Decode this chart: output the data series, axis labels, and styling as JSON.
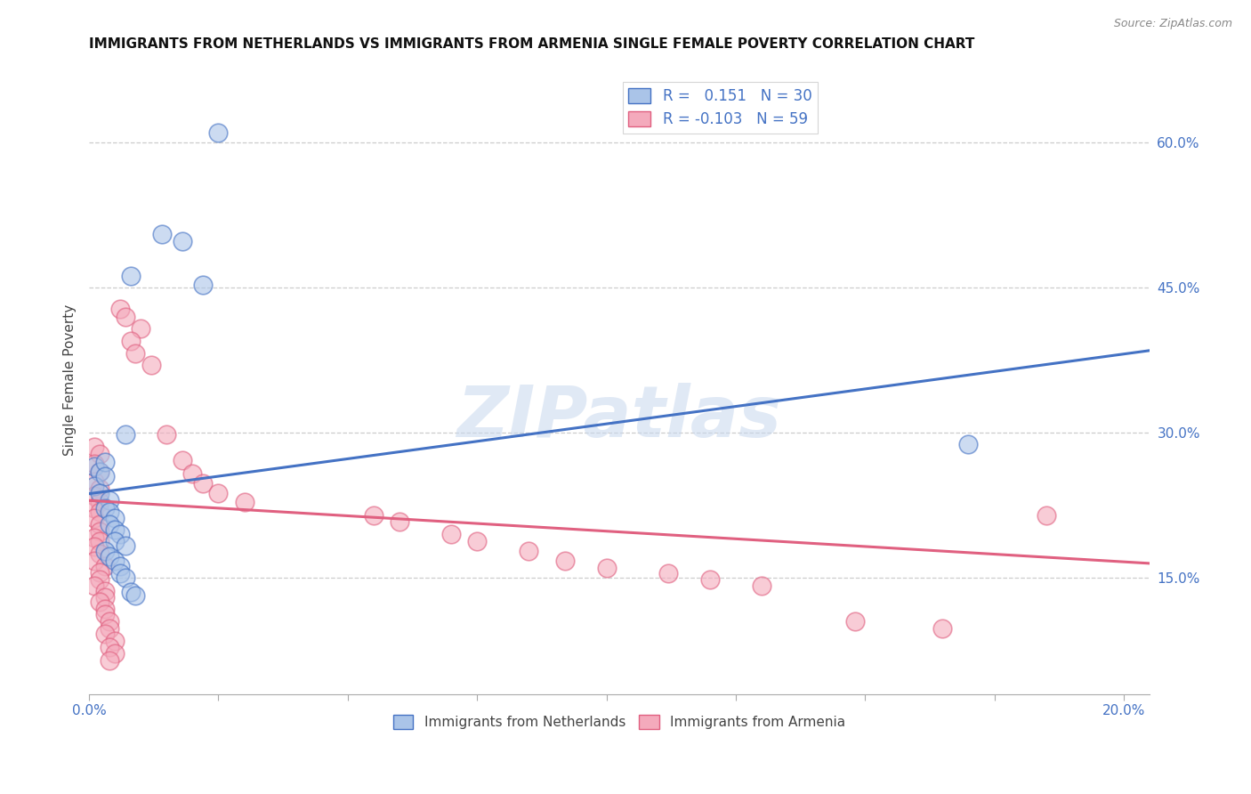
{
  "title": "IMMIGRANTS FROM NETHERLANDS VS IMMIGRANTS FROM ARMENIA SINGLE FEMALE POVERTY CORRELATION CHART",
  "source": "Source: ZipAtlas.com",
  "ylabel": "Single Female Poverty",
  "legend1_label": "Immigrants from Netherlands",
  "legend2_label": "Immigrants from Armenia",
  "R1": 0.151,
  "N1": 30,
  "R2": -0.103,
  "N2": 59,
  "color_blue": "#aac4e8",
  "color_pink": "#f4aabc",
  "trend_blue": "#4472c4",
  "trend_pink": "#e06080",
  "watermark": "ZIPatlas",
  "scatter_blue": [
    [
      0.025,
      0.61
    ],
    [
      0.014,
      0.505
    ],
    [
      0.018,
      0.498
    ],
    [
      0.008,
      0.462
    ],
    [
      0.022,
      0.453
    ],
    [
      0.001,
      0.265
    ],
    [
      0.002,
      0.26
    ],
    [
      0.001,
      0.245
    ],
    [
      0.003,
      0.27
    ],
    [
      0.003,
      0.255
    ],
    [
      0.002,
      0.238
    ],
    [
      0.004,
      0.23
    ],
    [
      0.003,
      0.222
    ],
    [
      0.004,
      0.218
    ],
    [
      0.005,
      0.212
    ],
    [
      0.004,
      0.205
    ],
    [
      0.005,
      0.2
    ],
    [
      0.006,
      0.195
    ],
    [
      0.005,
      0.188
    ],
    [
      0.007,
      0.183
    ],
    [
      0.007,
      0.298
    ],
    [
      0.003,
      0.178
    ],
    [
      0.004,
      0.172
    ],
    [
      0.005,
      0.168
    ],
    [
      0.006,
      0.162
    ],
    [
      0.006,
      0.155
    ],
    [
      0.007,
      0.15
    ],
    [
      0.008,
      0.135
    ],
    [
      0.009,
      0.132
    ],
    [
      0.17,
      0.288
    ]
  ],
  "scatter_pink": [
    [
      0.001,
      0.285
    ],
    [
      0.002,
      0.278
    ],
    [
      0.001,
      0.268
    ],
    [
      0.002,
      0.26
    ],
    [
      0.001,
      0.25
    ],
    [
      0.002,
      0.242
    ],
    [
      0.001,
      0.235
    ],
    [
      0.002,
      0.228
    ],
    [
      0.001,
      0.222
    ],
    [
      0.002,
      0.218
    ],
    [
      0.001,
      0.212
    ],
    [
      0.002,
      0.205
    ],
    [
      0.002,
      0.198
    ],
    [
      0.001,
      0.192
    ],
    [
      0.002,
      0.188
    ],
    [
      0.001,
      0.182
    ],
    [
      0.002,
      0.175
    ],
    [
      0.001,
      0.168
    ],
    [
      0.003,
      0.162
    ],
    [
      0.002,
      0.156
    ],
    [
      0.002,
      0.148
    ],
    [
      0.001,
      0.142
    ],
    [
      0.003,
      0.136
    ],
    [
      0.003,
      0.13
    ],
    [
      0.002,
      0.125
    ],
    [
      0.003,
      0.118
    ],
    [
      0.003,
      0.112
    ],
    [
      0.004,
      0.105
    ],
    [
      0.004,
      0.098
    ],
    [
      0.003,
      0.092
    ],
    [
      0.005,
      0.085
    ],
    [
      0.004,
      0.078
    ],
    [
      0.005,
      0.072
    ],
    [
      0.004,
      0.065
    ],
    [
      0.006,
      0.428
    ],
    [
      0.007,
      0.42
    ],
    [
      0.01,
      0.408
    ],
    [
      0.008,
      0.395
    ],
    [
      0.009,
      0.382
    ],
    [
      0.012,
      0.37
    ],
    [
      0.015,
      0.298
    ],
    [
      0.018,
      0.272
    ],
    [
      0.02,
      0.258
    ],
    [
      0.022,
      0.248
    ],
    [
      0.025,
      0.238
    ],
    [
      0.03,
      0.228
    ],
    [
      0.055,
      0.215
    ],
    [
      0.06,
      0.208
    ],
    [
      0.07,
      0.195
    ],
    [
      0.075,
      0.188
    ],
    [
      0.085,
      0.178
    ],
    [
      0.092,
      0.168
    ],
    [
      0.1,
      0.16
    ],
    [
      0.112,
      0.155
    ],
    [
      0.12,
      0.148
    ],
    [
      0.13,
      0.142
    ],
    [
      0.148,
      0.105
    ],
    [
      0.165,
      0.098
    ],
    [
      0.185,
      0.215
    ]
  ],
  "xlim": [
    0.0,
    0.205
  ],
  "ylim": [
    0.03,
    0.68
  ],
  "y_ticks": [
    0.15,
    0.3,
    0.45,
    0.6
  ],
  "x_ticks": [
    0.0,
    0.025,
    0.05,
    0.075,
    0.1,
    0.125,
    0.15,
    0.175,
    0.2
  ],
  "trend_blue_y0": 0.237,
  "trend_blue_y1": 0.385,
  "trend_pink_y0": 0.23,
  "trend_pink_y1": 0.165
}
